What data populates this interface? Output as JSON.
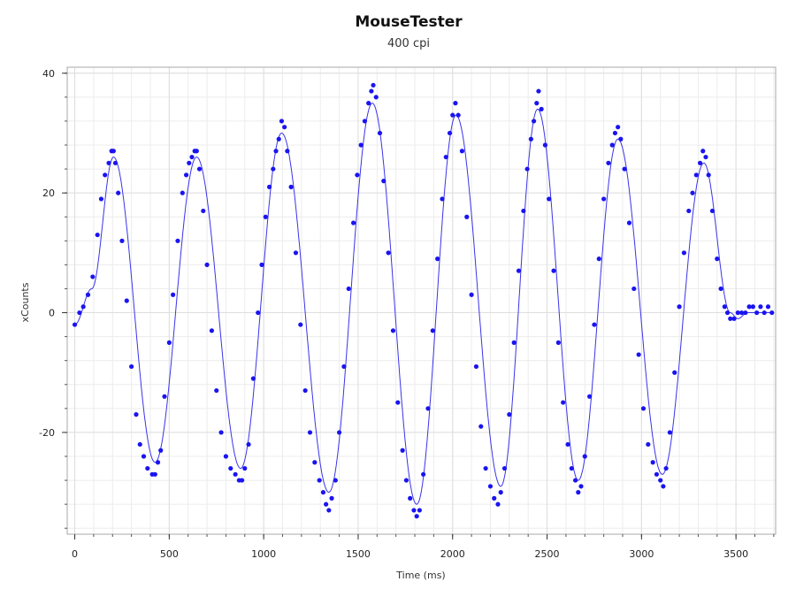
{
  "chart_data": {
    "type": "scatter",
    "title": "MouseTester",
    "subtitle": "400 cpi",
    "xlabel": "Time (ms)",
    "ylabel": "xCounts",
    "xlim": [
      -40,
      3710
    ],
    "ylim": [
      -37,
      41
    ],
    "xticks": [
      0,
      500,
      1000,
      1500,
      2000,
      2500,
      3000,
      3500
    ],
    "yticks": [
      -20,
      0,
      20,
      40
    ],
    "grid": true,
    "legend": "none",
    "point_color": "#1a14f0",
    "line_color": "#3a34e8",
    "wave_knots": {
      "x": [
        0,
        90,
        205,
        425,
        645,
        878,
        1095,
        1345,
        1575,
        1810,
        2018,
        2255,
        2450,
        2665,
        2875,
        3110,
        3330,
        3470,
        3510,
        3560,
        3700
      ],
      "y": [
        -2,
        4,
        26,
        -25,
        26,
        -26,
        30,
        -30,
        35,
        -32,
        33,
        -29,
        34,
        -28,
        29,
        -27,
        25,
        0,
        -1,
        0,
        0
      ]
    },
    "series": [
      {
        "values": [
          [
            0,
            -2
          ],
          [
            25,
            0
          ],
          [
            45,
            1
          ],
          [
            70,
            3
          ],
          [
            95,
            6
          ],
          [
            120,
            13
          ],
          [
            140,
            19
          ],
          [
            160,
            23
          ],
          [
            180,
            25
          ],
          [
            195,
            27
          ],
          [
            205,
            27
          ],
          [
            215,
            25
          ],
          [
            230,
            20
          ],
          [
            250,
            12
          ],
          [
            275,
            2
          ],
          [
            300,
            -9
          ],
          [
            325,
            -17
          ],
          [
            345,
            -22
          ],
          [
            365,
            -24
          ],
          [
            385,
            -26
          ],
          [
            410,
            -27
          ],
          [
            425,
            -27
          ],
          [
            440,
            -25
          ],
          [
            455,
            -23
          ],
          [
            475,
            -14
          ],
          [
            500,
            -5
          ],
          [
            520,
            3
          ],
          [
            545,
            12
          ],
          [
            570,
            20
          ],
          [
            590,
            23
          ],
          [
            605,
            25
          ],
          [
            620,
            26
          ],
          [
            635,
            27
          ],
          [
            645,
            27
          ],
          [
            660,
            24
          ],
          [
            680,
            17
          ],
          [
            700,
            8
          ],
          [
            725,
            -3
          ],
          [
            750,
            -13
          ],
          [
            775,
            -20
          ],
          [
            800,
            -24
          ],
          [
            825,
            -26
          ],
          [
            850,
            -27
          ],
          [
            870,
            -28
          ],
          [
            885,
            -28
          ],
          [
            900,
            -26
          ],
          [
            920,
            -22
          ],
          [
            945,
            -11
          ],
          [
            970,
            0
          ],
          [
            990,
            8
          ],
          [
            1010,
            16
          ],
          [
            1030,
            21
          ],
          [
            1050,
            24
          ],
          [
            1065,
            27
          ],
          [
            1080,
            29
          ],
          [
            1095,
            32
          ],
          [
            1110,
            31
          ],
          [
            1125,
            27
          ],
          [
            1145,
            21
          ],
          [
            1170,
            10
          ],
          [
            1195,
            -2
          ],
          [
            1220,
            -13
          ],
          [
            1245,
            -20
          ],
          [
            1270,
            -25
          ],
          [
            1295,
            -28
          ],
          [
            1315,
            -30
          ],
          [
            1330,
            -32
          ],
          [
            1345,
            -33
          ],
          [
            1360,
            -31
          ],
          [
            1380,
            -28
          ],
          [
            1400,
            -20
          ],
          [
            1425,
            -9
          ],
          [
            1450,
            4
          ],
          [
            1475,
            15
          ],
          [
            1495,
            23
          ],
          [
            1515,
            28
          ],
          [
            1535,
            32
          ],
          [
            1555,
            35
          ],
          [
            1570,
            37
          ],
          [
            1580,
            38
          ],
          [
            1595,
            36
          ],
          [
            1615,
            30
          ],
          [
            1635,
            22
          ],
          [
            1660,
            10
          ],
          [
            1685,
            -3
          ],
          [
            1710,
            -15
          ],
          [
            1735,
            -23
          ],
          [
            1755,
            -28
          ],
          [
            1775,
            -31
          ],
          [
            1795,
            -33
          ],
          [
            1810,
            -34
          ],
          [
            1825,
            -33
          ],
          [
            1845,
            -27
          ],
          [
            1870,
            -16
          ],
          [
            1895,
            -3
          ],
          [
            1920,
            9
          ],
          [
            1945,
            19
          ],
          [
            1965,
            26
          ],
          [
            1985,
            30
          ],
          [
            2000,
            33
          ],
          [
            2015,
            35
          ],
          [
            2030,
            33
          ],
          [
            2050,
            27
          ],
          [
            2075,
            16
          ],
          [
            2100,
            3
          ],
          [
            2125,
            -9
          ],
          [
            2150,
            -19
          ],
          [
            2175,
            -26
          ],
          [
            2200,
            -29
          ],
          [
            2220,
            -31
          ],
          [
            2240,
            -32
          ],
          [
            2255,
            -30
          ],
          [
            2275,
            -26
          ],
          [
            2300,
            -17
          ],
          [
            2325,
            -5
          ],
          [
            2350,
            7
          ],
          [
            2375,
            17
          ],
          [
            2395,
            24
          ],
          [
            2415,
            29
          ],
          [
            2430,
            32
          ],
          [
            2445,
            35
          ],
          [
            2455,
            37
          ],
          [
            2470,
            34
          ],
          [
            2490,
            28
          ],
          [
            2510,
            19
          ],
          [
            2535,
            7
          ],
          [
            2560,
            -5
          ],
          [
            2585,
            -15
          ],
          [
            2610,
            -22
          ],
          [
            2630,
            -26
          ],
          [
            2650,
            -28
          ],
          [
            2665,
            -30
          ],
          [
            2680,
            -29
          ],
          [
            2700,
            -24
          ],
          [
            2725,
            -14
          ],
          [
            2750,
            -2
          ],
          [
            2775,
            9
          ],
          [
            2800,
            19
          ],
          [
            2825,
            25
          ],
          [
            2845,
            28
          ],
          [
            2860,
            30
          ],
          [
            2875,
            31
          ],
          [
            2890,
            29
          ],
          [
            2910,
            24
          ],
          [
            2935,
            15
          ],
          [
            2960,
            4
          ],
          [
            2985,
            -7
          ],
          [
            3010,
            -16
          ],
          [
            3035,
            -22
          ],
          [
            3060,
            -25
          ],
          [
            3080,
            -27
          ],
          [
            3100,
            -28
          ],
          [
            3115,
            -29
          ],
          [
            3130,
            -26
          ],
          [
            3150,
            -20
          ],
          [
            3175,
            -10
          ],
          [
            3200,
            1
          ],
          [
            3225,
            10
          ],
          [
            3250,
            17
          ],
          [
            3270,
            20
          ],
          [
            3290,
            23
          ],
          [
            3310,
            25
          ],
          [
            3325,
            27
          ],
          [
            3340,
            26
          ],
          [
            3355,
            23
          ],
          [
            3375,
            17
          ],
          [
            3400,
            9
          ],
          [
            3420,
            4
          ],
          [
            3440,
            1
          ],
          [
            3455,
            0
          ],
          [
            3470,
            -1
          ],
          [
            3490,
            -1
          ],
          [
            3510,
            0
          ],
          [
            3530,
            0
          ],
          [
            3550,
            0
          ],
          [
            3570,
            1
          ],
          [
            3590,
            1
          ],
          [
            3610,
            0
          ],
          [
            3630,
            1
          ],
          [
            3650,
            0
          ],
          [
            3670,
            1
          ],
          [
            3690,
            0
          ]
        ]
      }
    ]
  }
}
